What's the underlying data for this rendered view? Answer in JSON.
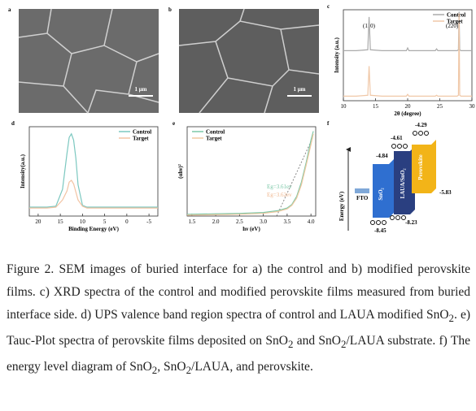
{
  "sem": [
    {
      "label": "a",
      "scale": "1 μm"
    },
    {
      "label": "b",
      "scale": "1 μm"
    }
  ],
  "chart_data": [
    {
      "type": "line",
      "label": "c",
      "xlabel": "2θ (degree)",
      "ylabel": "Intensity (a.u.)",
      "legend": "upper right",
      "annotations": [
        "(110)",
        "(220)"
      ],
      "x": [
        10,
        12,
        13.8,
        14,
        14.2,
        16,
        19.8,
        20,
        20.2,
        24.3,
        24.5,
        24.7,
        27.7,
        27.9,
        28,
        28.1,
        28.3,
        30
      ],
      "series": [
        {
          "name": "Control",
          "color": "#aaaaaa",
          "values": [
            55,
            55,
            56,
            92,
            56,
            55,
            55,
            58,
            55,
            55,
            57,
            55,
            55,
            56,
            98,
            56,
            55,
            55
          ]
        },
        {
          "name": "Target",
          "color": "#f0c8a8",
          "values": [
            5,
            5,
            6,
            38,
            6,
            5,
            5,
            7,
            5,
            5,
            6,
            5,
            5,
            6,
            96,
            6,
            5,
            5
          ]
        }
      ],
      "xlim": [
        10,
        30
      ],
      "xticks": [
        10,
        15,
        20,
        25,
        30
      ],
      "ylim": [
        0,
        100
      ]
    },
    {
      "type": "line",
      "label": "d",
      "xlabel": "Binding Energy (eV)",
      "ylabel": "Intensity(a.u.)",
      "legend": "upper right",
      "x": [
        22,
        18,
        16,
        14.5,
        13.5,
        13,
        12.5,
        12,
        11.5,
        11,
        10,
        9,
        7,
        4,
        0,
        -7
      ],
      "series": [
        {
          "name": "Control",
          "color": "#7cc8c0",
          "values": [
            10,
            10,
            11,
            30,
            70,
            88,
            92,
            85,
            65,
            35,
            12,
            10,
            10,
            10,
            10,
            10
          ]
        },
        {
          "name": "Target",
          "color": "#f2c4a4",
          "values": [
            9,
            9,
            10,
            18,
            28,
            38,
            40,
            36,
            27,
            18,
            11,
            9,
            9,
            9,
            9,
            9
          ]
        }
      ],
      "xlim": [
        22,
        -7
      ],
      "xticks": [
        20,
        15,
        10,
        5,
        0,
        -5
      ],
      "ylim": [
        0,
        100
      ]
    },
    {
      "type": "line",
      "label": "e",
      "xlabel": "hν (eV)",
      "ylabel": "(αhν)²",
      "legend": "upper left",
      "annotations": [
        "Eg=3.61ev",
        "Eg=3.62ev"
      ],
      "x": [
        1.4,
        2.0,
        2.5,
        3.0,
        3.3,
        3.5,
        3.6,
        3.7,
        3.8,
        3.9,
        4.0,
        4.05
      ],
      "series": [
        {
          "name": "Control",
          "color": "#7cc8a8",
          "values": [
            2,
            2.5,
            3,
            4,
            6,
            9,
            13,
            22,
            38,
            60,
            85,
            95
          ]
        },
        {
          "name": "Target",
          "color": "#f0c8a0",
          "values": [
            1,
            1.5,
            2,
            3,
            5,
            8,
            12,
            20,
            35,
            57,
            80,
            92
          ]
        }
      ],
      "xlim": [
        1.4,
        4.1
      ],
      "xticks": [
        1.5,
        {
          "value": 2,
          "label": "2.0"
        },
        2.5,
        {
          "value": 3,
          "label": "3.0"
        },
        3.5,
        {
          "value": 4,
          "label": "4.0"
        }
      ],
      "ylim": [
        0,
        100
      ]
    }
  ],
  "energy_diagram": {
    "label": "f",
    "axis_label": "Energy (eV)",
    "layers": [
      "FTO",
      "SnO₂",
      "LAUA/SnO₂",
      "Perovskite"
    ],
    "levels": [
      -4.29,
      -4.61,
      -4.84,
      -5.83,
      -8.23,
      -8.45
    ]
  },
  "caption": [
    "Figure 2. SEM images of buried interface for a) the control and b) modified perovskite films. c) XRD spectra of the control and modified perovskite films measured from buried interface side. d) UPS valence band region spectra of control and LAUA modified SnO",
    "2",
    ". e) Tauc-Plot spectra of perovskite films deposited on SnO",
    "2",
    " and SnO",
    "2",
    "/LAUA substrate. f) The energy level diagram of SnO",
    "2",
    ", SnO",
    "2",
    "/LAUA, and perovskite."
  ]
}
